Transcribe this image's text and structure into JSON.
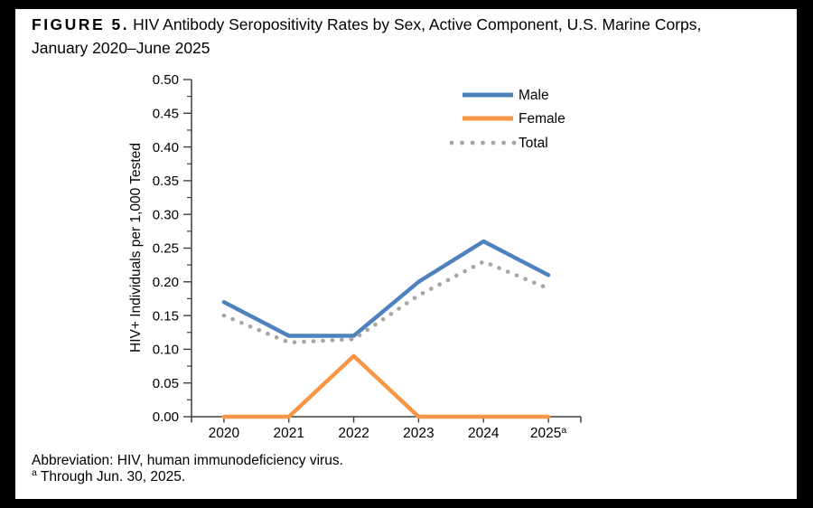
{
  "figure_label": "FIGURE 5.",
  "title": "HIV Antibody Seropositivity Rates by Sex, Active Component, U.S. Marine Corps, January 2020–June 2025",
  "footnotes": {
    "abbreviation": "Abbreviation: HIV, human immunodeficiency virus.",
    "note_marker": "a",
    "note_text": "Through Jun. 30, 2025."
  },
  "chart_data": {
    "type": "line",
    "title": "",
    "xlabel": "",
    "ylabel": "HIV+ Individuals per 1,000 Tested",
    "categories": [
      "2020",
      "2021",
      "2022",
      "2023",
      "2024",
      "2025"
    ],
    "last_category_superscript": "a",
    "ylim": [
      0,
      0.5
    ],
    "ytick_step": 0.05,
    "yminor_step": 0.025,
    "ytick_format_decimals": 2,
    "grid": false,
    "legend_position": "top-right",
    "axis_color": "#3f3f3f",
    "text_color": "#000000",
    "series": [
      {
        "name": "Male",
        "style": "solid",
        "color": "#4F81BD",
        "values": [
          0.17,
          0.12,
          0.12,
          0.2,
          0.26,
          0.21
        ]
      },
      {
        "name": "Female",
        "style": "solid",
        "color": "#F79646",
        "values": [
          0.0,
          0.0,
          0.09,
          0.0,
          0.0,
          0.0
        ]
      },
      {
        "name": "Total",
        "style": "dotted",
        "color": "#A6A6A6",
        "values": [
          0.15,
          0.11,
          0.115,
          0.18,
          0.23,
          0.19
        ]
      }
    ]
  }
}
